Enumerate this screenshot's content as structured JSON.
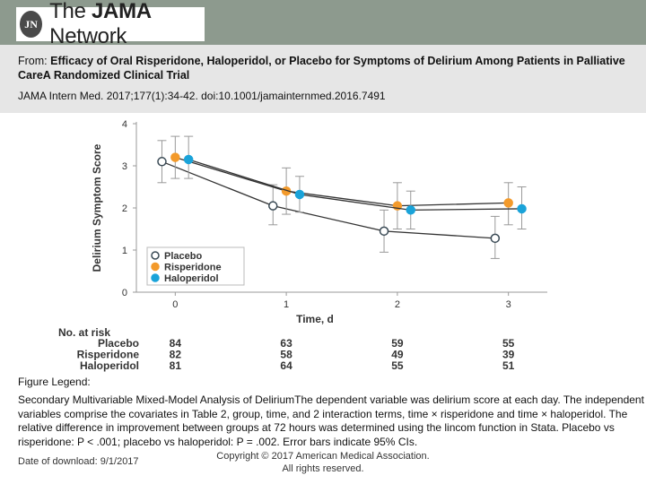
{
  "header": {
    "logo_badge": "JN",
    "logo_text_pre": "The ",
    "logo_text_bold": "JAMA",
    "logo_text_post": " Network",
    "from_label": "From: ",
    "article_title": "Efficacy of Oral Risperidone, Haloperidol, or Placebo for Symptoms of Delirium Among Patients in Palliative CareA Randomized Clinical Trial",
    "citation": "JAMA Intern Med. 2017;177(1):34-42. doi:10.1001/jamainternmed.2016.7491"
  },
  "figure": {
    "legend_label": "Figure Legend:",
    "caption": "Secondary Multivariable Mixed-Model Analysis of DeliriumThe dependent variable was delirium score at each day. The independent variables comprise the covariates in Table 2, group, time, and 2 interaction terms, time × risperidone and time × haloperidol. The relative difference in improvement between groups at 72 hours was determined using the lincom function in Stata. Placebo vs risperidone: P < .001; placebo vs haloperidol: P = .002. Error bars indicate 95% CIs."
  },
  "footer": {
    "date": "Date of download:  9/1/2017",
    "copyright_line1": "Copyright © 2017 American Medical Association.",
    "copyright_line2": "All rights reserved."
  },
  "chart_data": {
    "type": "line",
    "xlabel": "Time, d",
    "ylabel": "Delirium Symptom Score",
    "x": [
      0,
      1,
      2,
      3
    ],
    "xlim": [
      -0.35,
      3.35
    ],
    "ylim": [
      0,
      4
    ],
    "yticks": [
      0,
      1,
      2,
      3,
      4
    ],
    "xticks": [
      0,
      1,
      2,
      3
    ],
    "legend_position": "bottom-left",
    "series": [
      {
        "name": "Placebo",
        "color": "#ffffff",
        "stroke": "#3a4a55",
        "values": [
          3.1,
          2.05,
          1.45,
          1.28
        ],
        "ci_low": [
          2.6,
          1.6,
          0.95,
          0.8
        ],
        "ci_high": [
          3.6,
          2.55,
          1.95,
          1.8
        ]
      },
      {
        "name": "Risperidone",
        "color": "#f39a2b",
        "stroke": "#f39a2b",
        "values": [
          3.2,
          2.4,
          2.05,
          2.12
        ],
        "ci_low": [
          2.7,
          1.85,
          1.5,
          1.6
        ],
        "ci_high": [
          3.7,
          2.95,
          2.6,
          2.6
        ]
      },
      {
        "name": "Haloperidol",
        "color": "#1aa3d9",
        "stroke": "#1aa3d9",
        "values": [
          3.15,
          2.32,
          1.95,
          1.98
        ],
        "ci_low": [
          2.7,
          1.9,
          1.5,
          1.5
        ],
        "ci_high": [
          3.7,
          2.75,
          2.4,
          2.5
        ]
      }
    ],
    "at_risk": {
      "title": "No. at risk",
      "rows": [
        {
          "label": "Placebo",
          "values": [
            "84",
            "63",
            "59",
            "55"
          ]
        },
        {
          "label": "Risperidone",
          "values": [
            "82",
            "58",
            "49",
            "39"
          ]
        },
        {
          "label": "Haloperidol",
          "values": [
            "81",
            "64",
            "55",
            "51"
          ]
        }
      ]
    }
  }
}
